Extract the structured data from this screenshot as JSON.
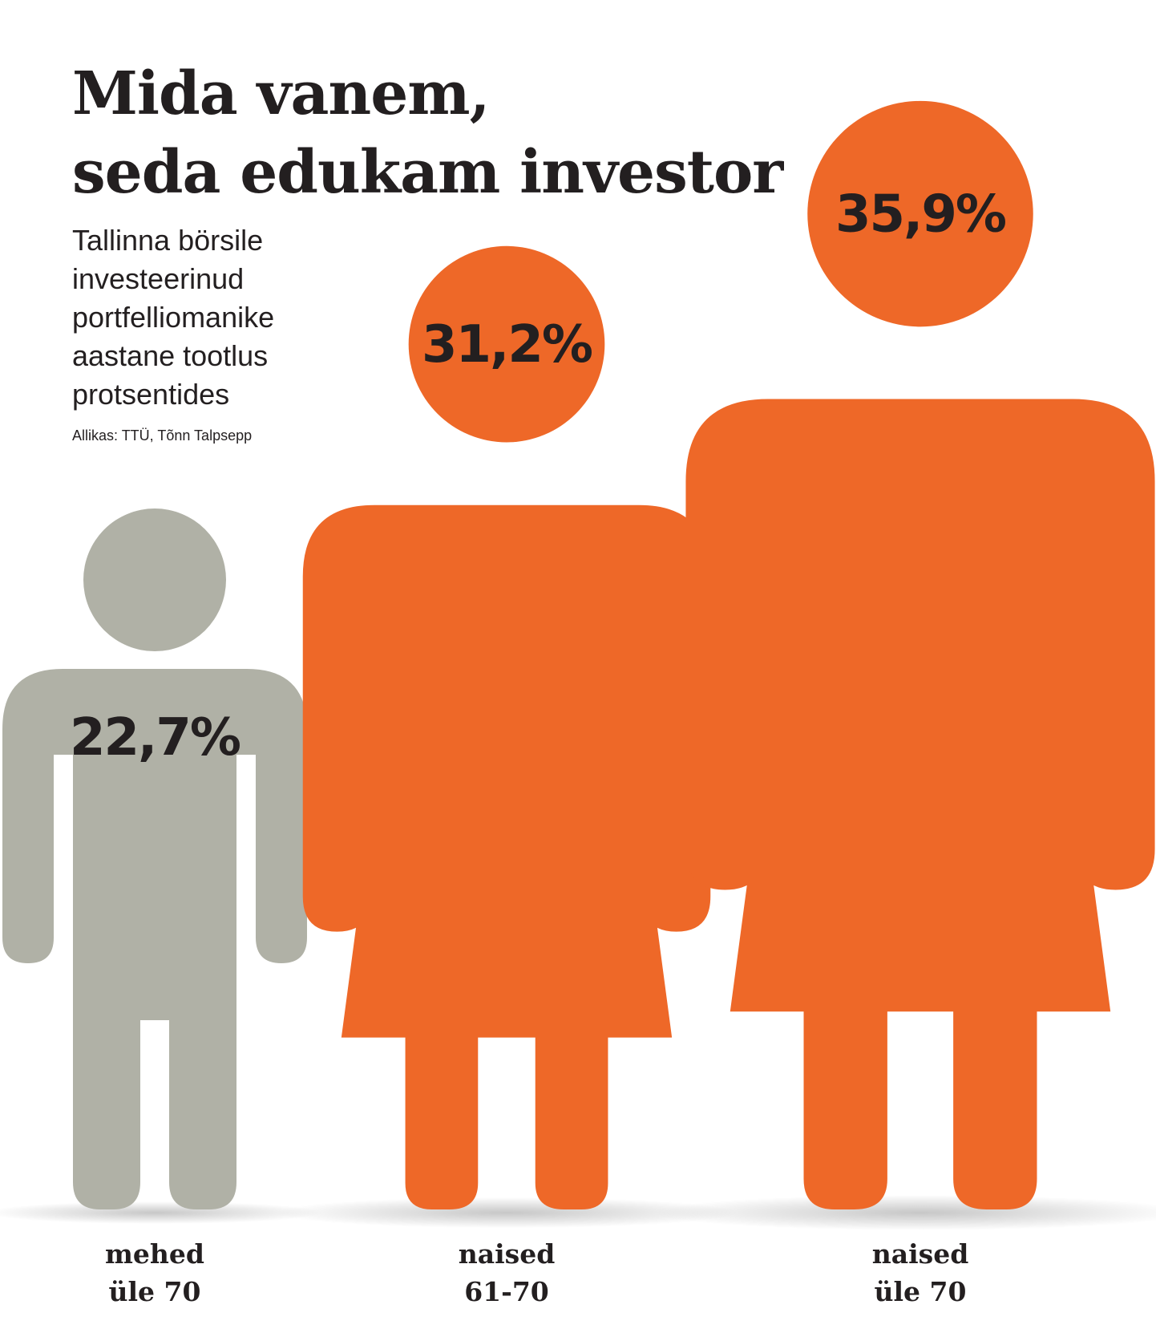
{
  "title_lines": [
    "Mida vanem,",
    "seda edukam investor"
  ],
  "subtitle_lines": [
    "Tallinna börsile",
    "investeerinud",
    "portfelliomanike",
    "aastane tootlus",
    "protsentides"
  ],
  "source": "Allikas: TTÜ, Tõnn Talpsepp",
  "colors": {
    "men": "#b0b1a6",
    "women": "#ee6828",
    "text": "#231f20"
  },
  "chart_data": {
    "type": "bar",
    "title": "Mida vanem, seda edukam investor",
    "ylabel": "",
    "xlabel": "",
    "categories": [
      "mehed üle 70",
      "naised 61-70",
      "naised üle 70"
    ],
    "category_lines": [
      [
        "mehed",
        "üle 70"
      ],
      [
        "naised",
        "61-70"
      ],
      [
        "naised",
        "üle 70"
      ]
    ],
    "values": [
      22.7,
      31.2,
      35.9
    ],
    "value_labels": [
      "22,7%",
      "31,2%",
      "35,9%"
    ],
    "figure_icons": [
      "man-icon",
      "woman-icon",
      "woman-icon"
    ]
  }
}
